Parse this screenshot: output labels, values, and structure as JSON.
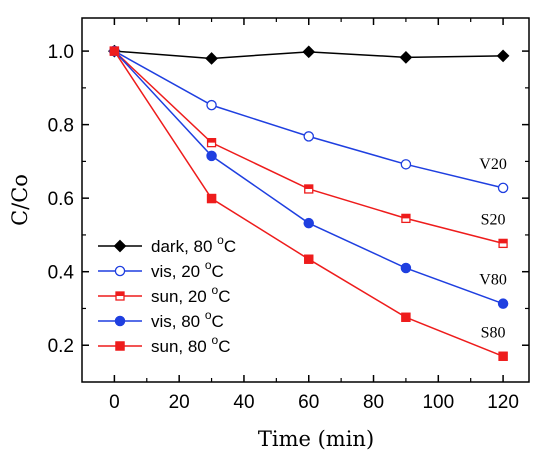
{
  "chart_data": {
    "type": "line",
    "xlabel": "Time (min)",
    "ylabel": "C/Co",
    "xlim": [
      -10,
      128
    ],
    "ylim": [
      0.1,
      1.09
    ],
    "xticks": [
      0,
      20,
      40,
      60,
      80,
      100,
      120
    ],
    "yticks": [
      0.2,
      0.4,
      0.6,
      0.8,
      1.0
    ],
    "xtick_labels": [
      "0",
      "20",
      "40",
      "60",
      "80",
      "100",
      "120"
    ],
    "ytick_labels": [
      "0.2",
      "0.4",
      "0.6",
      "0.8",
      "1.0"
    ],
    "grid": false,
    "legend_position": "bottom-left",
    "series": [
      {
        "name": "dark, 80 °C",
        "legend_parts": {
          "text": "dark, 80 ",
          "sup": "o",
          "unit": "C"
        },
        "color": "#000000",
        "marker": "diamond",
        "filled": true,
        "x": [
          0,
          30,
          60,
          90,
          120
        ],
        "values": [
          1.0,
          0.98,
          0.998,
          0.983,
          0.987
        ]
      },
      {
        "name": "vis, 20 °C",
        "legend_parts": {
          "text": "vis,  20 ",
          "sup": "o",
          "unit": "C"
        },
        "color": "#1f3fe0",
        "marker": "circle",
        "filled": false,
        "x": [
          0,
          30,
          60,
          90,
          120
        ],
        "values": [
          1.0,
          0.853,
          0.768,
          0.692,
          0.628
        ],
        "annotation": "V20"
      },
      {
        "name": "sun, 20 °C",
        "legend_parts": {
          "text": "sun,  20 ",
          "sup": "o",
          "unit": "C"
        },
        "color": "#ee1c1c",
        "marker": "square",
        "filled": false,
        "x": [
          0,
          30,
          60,
          90,
          120
        ],
        "values": [
          1.0,
          0.751,
          0.625,
          0.545,
          0.477
        ],
        "annotation": "S20"
      },
      {
        "name": "vis, 80 °C",
        "legend_parts": {
          "text": "vis,  80 ",
          "sup": "o",
          "unit": "C"
        },
        "color": "#1f3fe0",
        "marker": "circle",
        "filled": true,
        "x": [
          0,
          30,
          60,
          90,
          120
        ],
        "values": [
          1.0,
          0.715,
          0.532,
          0.41,
          0.313
        ],
        "annotation": "V80"
      },
      {
        "name": "sun, 80 °C",
        "legend_parts": {
          "text": "sun,  80 ",
          "sup": "o",
          "unit": "C"
        },
        "color": "#ee1c1c",
        "marker": "square",
        "filled": true,
        "x": [
          0,
          30,
          60,
          90,
          120
        ],
        "values": [
          1.0,
          0.599,
          0.434,
          0.276,
          0.17
        ],
        "annotation": "S80"
      }
    ]
  }
}
